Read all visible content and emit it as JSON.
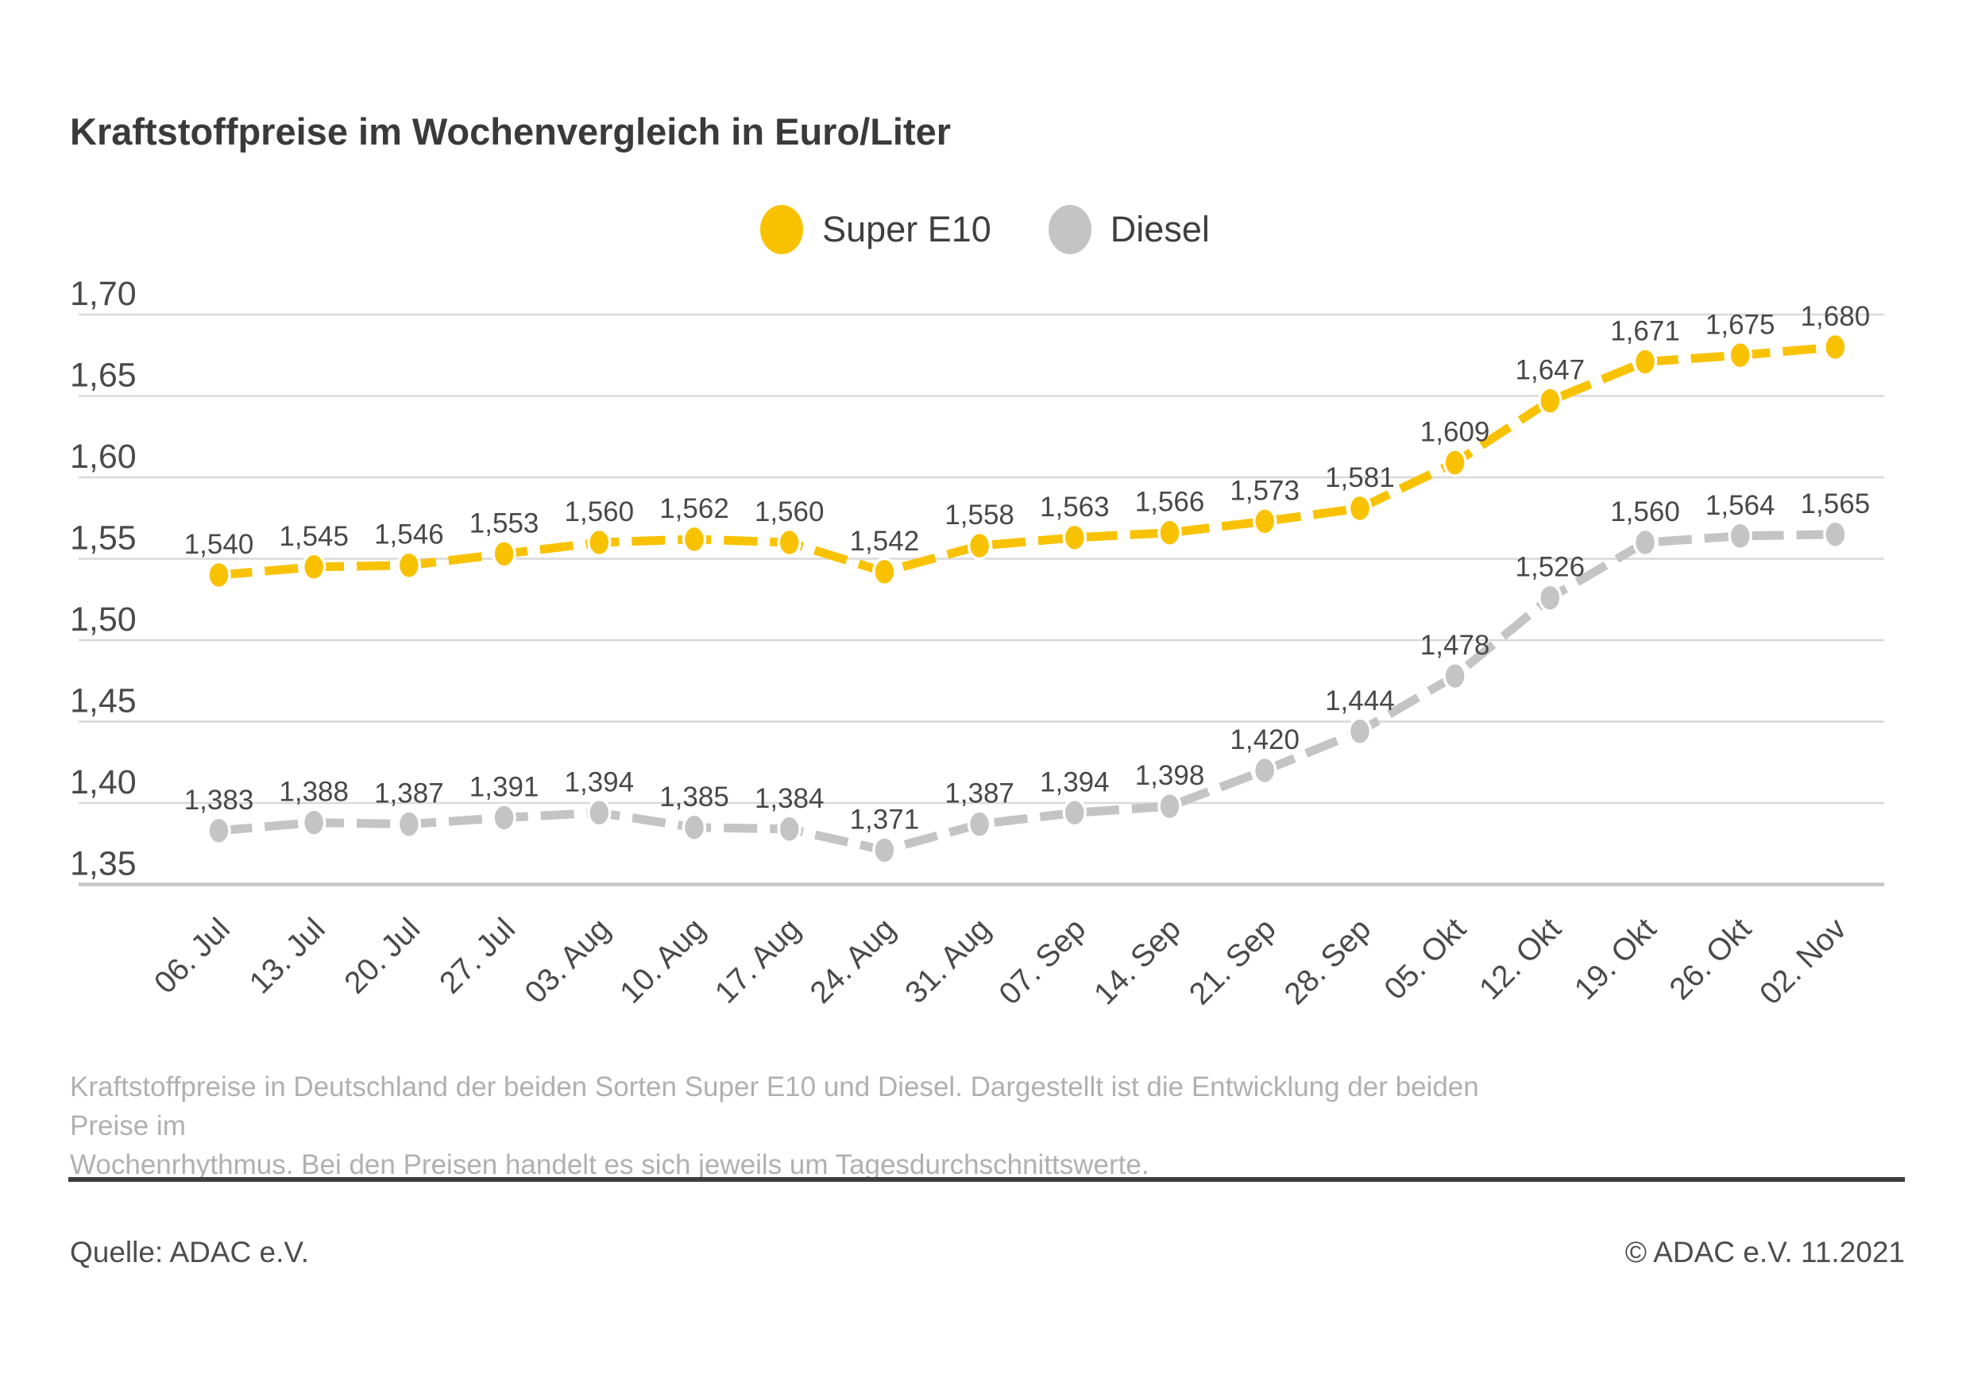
{
  "title": "Kraftstoffpreise im Wochenvergleich in Euro/Liter",
  "legend": [
    {
      "label": "Super E10",
      "color": "#F9C200"
    },
    {
      "label": "Diesel",
      "color": "#C4C4C4"
    }
  ],
  "chart_data": {
    "type": "line",
    "title": "Kraftstoffpreise im Wochenvergleich in Euro/Liter",
    "x": [
      "06. Jul",
      "13. Jul",
      "20. Jul",
      "27. Jul",
      "03. Aug",
      "10. Aug",
      "17. Aug",
      "24. Aug",
      "31. Aug",
      "07. Sep",
      "14. Sep",
      "21. Sep",
      "28. Sep",
      "05. Okt",
      "12. Okt",
      "19. Okt",
      "26. Okt",
      "02. Nov"
    ],
    "series": [
      {
        "name": "Diesel",
        "color": "#C4C4C4",
        "values": [
          1.383,
          1.388,
          1.387,
          1.391,
          1.394,
          1.385,
          1.384,
          1.371,
          1.387,
          1.394,
          1.398,
          1.42,
          1.444,
          1.478,
          1.526,
          1.56,
          1.564,
          1.565
        ],
        "labels": [
          "1,383",
          "1,388",
          "1,387",
          "1,391",
          "1,394",
          "1,385",
          "1,384",
          "1,371",
          "1,387",
          "1,394",
          "1,398",
          "1,420",
          "1,444",
          "1,478",
          "1,526",
          "1,560",
          "1,564",
          "1,565"
        ]
      },
      {
        "name": "Super E10",
        "color": "#F9C200",
        "values": [
          1.54,
          1.545,
          1.546,
          1.553,
          1.56,
          1.562,
          1.56,
          1.542,
          1.558,
          1.563,
          1.566,
          1.573,
          1.581,
          1.609,
          1.647,
          1.671,
          1.675,
          1.68
        ],
        "labels": [
          "1,540",
          "1,545",
          "1,546",
          "1,553",
          "1,560",
          "1,562",
          "1,560",
          "1,542",
          "1,558",
          "1,563",
          "1,566",
          "1,573",
          "1,581",
          "1,609",
          "1,647",
          "1,671",
          "1,675",
          "1,680"
        ]
      }
    ],
    "xlabel": "",
    "ylabel": "",
    "ylim": [
      1.35,
      1.7
    ],
    "yticks": {
      "values": [
        1.7,
        1.65,
        1.6,
        1.55,
        1.5,
        1.45,
        1.4,
        1.35
      ],
      "labels": [
        "1,70",
        "1,65",
        "1,60",
        "1,55",
        "1,50",
        "1,45",
        "1,40",
        "1,35"
      ]
    },
    "grid": true,
    "legend_position": "top-center",
    "grid_color": "#d9d9d9",
    "axis_color": "#c6c6c6",
    "label_color": "#4a4a4a"
  },
  "caption_lines": [
    "Kraftstoffpreise in Deutschland der beiden Sorten Super E10 und Diesel. Dargestellt ist die Entwicklung der beiden Preise im",
    "Wochenrhythmus. Bei den Preisen handelt es sich jeweils um Tagesdurchschnittswerte."
  ],
  "footer": {
    "source": "Quelle: ADAC e.V.",
    "copyright": "© ADAC e.V. 11.2021"
  }
}
